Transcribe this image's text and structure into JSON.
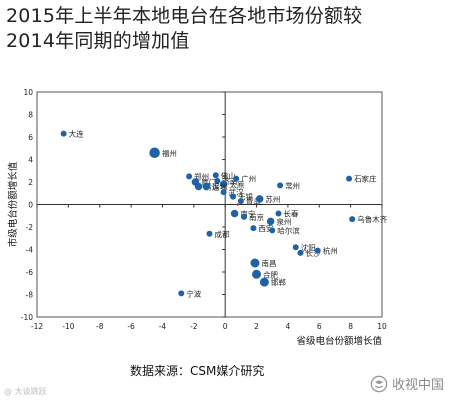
{
  "title_lines": [
    "2015年上半年本地电台在各地市场份额较",
    "2014年同期的增加值"
  ],
  "source": "数据来源：CSM媒介研究",
  "watermark_left": "@ 大谈跳跃",
  "watermark_right": "收视中国",
  "colors": {
    "dot": "#1f63a6",
    "origin": "#cc2222",
    "axis": "#444444"
  },
  "chart_data": {
    "type": "scatter",
    "xlabel": "省级电台份额增长值",
    "ylabel": "市级电台份额增长值",
    "xlim": [
      -12,
      10
    ],
    "ylim": [
      -10,
      10
    ],
    "xticks": [
      -12,
      -10,
      -8,
      -6,
      -4,
      -2,
      0,
      2,
      4,
      6,
      8,
      10
    ],
    "yticks": [
      -10,
      -8,
      -6,
      -4,
      -2,
      0,
      2,
      4,
      6,
      8,
      10
    ],
    "points": [
      {
        "label": "大连",
        "x": -10.3,
        "y": 6.3,
        "size": 4
      },
      {
        "label": "福州",
        "x": -4.5,
        "y": 4.6,
        "size": 7
      },
      {
        "label": "郑州",
        "x": -2.3,
        "y": 2.5,
        "size": 4
      },
      {
        "label": "厦门",
        "x": -1.9,
        "y": 2.0,
        "size": 5
      },
      {
        "label": "佛山",
        "x": -0.6,
        "y": 2.6,
        "size": 4
      },
      {
        "label": "济南",
        "x": -0.5,
        "y": 2.1,
        "size": 4
      },
      {
        "label": "广州",
        "x": 0.7,
        "y": 2.3,
        "size": 4
      },
      {
        "label": "清远",
        "x": -1.7,
        "y": 1.6,
        "size": 5
      },
      {
        "label": "太原",
        "x": -0.1,
        "y": 1.8,
        "size": 5
      },
      {
        "label": "深圳",
        "x": -1.2,
        "y": 1.6,
        "size": 5
      },
      {
        "label": "武汉",
        "x": -0.1,
        "y": 1.1,
        "size": 4
      },
      {
        "label": "无锡",
        "x": 0.5,
        "y": 0.7,
        "size": 4
      },
      {
        "label": "常州",
        "x": 3.5,
        "y": 1.7,
        "size": 4
      },
      {
        "label": "石家庄",
        "x": 7.9,
        "y": 2.3,
        "size": 4
      },
      {
        "label": "青岛",
        "x": 1.0,
        "y": 0.3,
        "size": 4
      },
      {
        "label": "苏州",
        "x": 2.2,
        "y": 0.5,
        "size": 5
      },
      {
        "label": "南宁",
        "x": 0.6,
        "y": -0.8,
        "size": 5
      },
      {
        "label": "长春",
        "x": 3.4,
        "y": -0.8,
        "size": 4
      },
      {
        "label": "南京",
        "x": 1.2,
        "y": -1.1,
        "size": 4
      },
      {
        "label": "泉州",
        "x": 2.9,
        "y": -1.5,
        "size": 5
      },
      {
        "label": "西安",
        "x": 1.8,
        "y": -2.1,
        "size": 4
      },
      {
        "label": "哈尔滨",
        "x": 3.0,
        "y": -2.3,
        "size": 4
      },
      {
        "label": "乌鲁木齐",
        "x": 8.1,
        "y": -1.3,
        "size": 4
      },
      {
        "label": "成都",
        "x": -1.0,
        "y": -2.6,
        "size": 4
      },
      {
        "label": "沈阳",
        "x": 4.5,
        "y": -3.8,
        "size": 4
      },
      {
        "label": "长沙",
        "x": 4.8,
        "y": -4.3,
        "size": 4
      },
      {
        "label": "杭州",
        "x": 5.9,
        "y": -4.1,
        "size": 4
      },
      {
        "label": "南昌",
        "x": 1.9,
        "y": -5.2,
        "size": 6
      },
      {
        "label": "合肥",
        "x": 2.0,
        "y": -6.2,
        "size": 6
      },
      {
        "label": "邯郸",
        "x": 2.5,
        "y": -6.9,
        "size": 6
      },
      {
        "label": "宁波",
        "x": -2.8,
        "y": -7.9,
        "size": 4
      }
    ]
  }
}
